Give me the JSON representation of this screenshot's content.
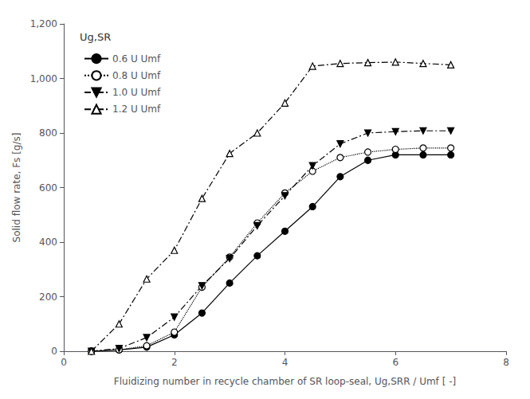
{
  "chart_data": {
    "type": "line",
    "xlabel": "Fluidizing number in recycle chamber of SR loop-seal, Ug,SRR / Umf [ -]",
    "ylabel": "Solid flow rate, Fs [g/s]",
    "legend_title": "Ug,SR",
    "legend": "upper left",
    "grid": false,
    "xlim": [
      0,
      8
    ],
    "ylim": [
      0,
      1200
    ],
    "xticks": [
      0,
      2,
      4,
      6,
      8
    ],
    "yticks": [
      0,
      200,
      400,
      600,
      800,
      1000,
      1200
    ],
    "series": [
      {
        "name": "0.6 U Umf",
        "color": "#000000",
        "marker": "filled_circle",
        "line_style": "solid",
        "x": [
          0.5,
          1.0,
          1.5,
          2.0,
          2.5,
          3.0,
          3.5,
          4.0,
          4.5,
          5.0,
          5.5,
          6.0,
          6.5,
          7.0
        ],
        "values": [
          0,
          5,
          15,
          60,
          140,
          250,
          350,
          440,
          530,
          640,
          700,
          720,
          720,
          720
        ]
      },
      {
        "name": "0.8 U Umf",
        "color": "#000000",
        "marker": "open_circle",
        "line_style": "dotted",
        "x": [
          0.5,
          1.0,
          1.5,
          2.0,
          2.5,
          3.0,
          3.5,
          4.0,
          4.5,
          5.0,
          5.5,
          6.0,
          6.5,
          7.0
        ],
        "values": [
          0,
          5,
          20,
          70,
          235,
          345,
          470,
          580,
          660,
          710,
          730,
          740,
          745,
          745
        ]
      },
      {
        "name": "1.0 U Umf",
        "color": "#000000",
        "marker": "filled_triangle_down",
        "line_style": "dashdot",
        "x": [
          0.5,
          1.0,
          1.5,
          2.0,
          2.5,
          3.0,
          3.5,
          4.0,
          4.5,
          5.0,
          5.5,
          6.0,
          6.5,
          7.0
        ],
        "values": [
          0,
          10,
          50,
          125,
          240,
          340,
          460,
          570,
          680,
          760,
          800,
          805,
          808,
          808
        ]
      },
      {
        "name": "1.2 U Umf",
        "color": "#000000",
        "marker": "open_triangle_up",
        "line_style": "dashdot",
        "x": [
          0.5,
          1.0,
          1.5,
          2.0,
          2.5,
          3.0,
          3.5,
          4.0,
          4.5,
          5.0,
          5.5,
          6.0,
          6.5,
          7.0
        ],
        "values": [
          0,
          100,
          265,
          370,
          560,
          725,
          800,
          910,
          1045,
          1055,
          1058,
          1060,
          1055,
          1050
        ]
      }
    ]
  }
}
